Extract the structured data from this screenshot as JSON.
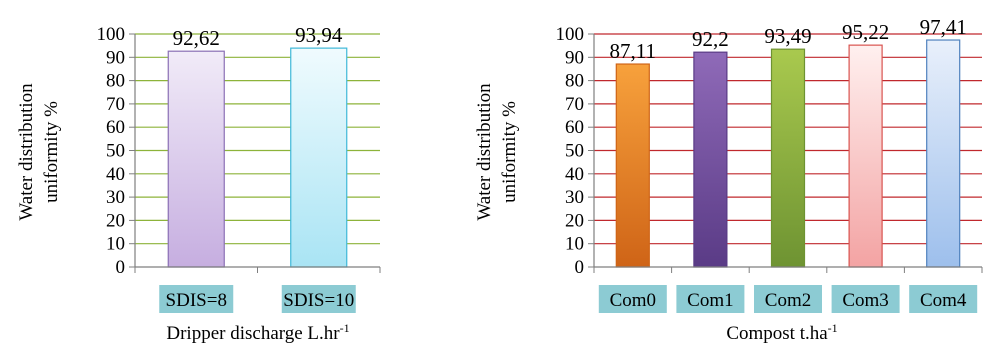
{
  "chart_data": [
    {
      "type": "bar",
      "categories": [
        "SDIS=8",
        "SDIS=10"
      ],
      "values": [
        92.62,
        93.94
      ],
      "value_labels": [
        "92,62",
        "93,94"
      ],
      "xlabel": "Dripper discharge L.hr",
      "xlabel_sup": "-1",
      "ylabel_line1": "Water distribution",
      "ylabel_line2": "uniformity %",
      "ylim": [
        0,
        100
      ],
      "yticks": [
        "0",
        "10",
        "20",
        "30",
        "40",
        "50",
        "60",
        "70",
        "80",
        "90",
        "100"
      ],
      "grid": true,
      "grid_color": "#8db33a",
      "category_label_bg": "#8ccbd3",
      "bar_fills": [
        [
          "#f1ebf8",
          "#c6aee0"
        ],
        [
          "#f0fbfe",
          "#a9e4f4"
        ]
      ],
      "bar_strokes": [
        "#8a6fb5",
        "#3fb8d8"
      ]
    },
    {
      "type": "bar",
      "categories": [
        "Com0",
        "Com1",
        "Com2",
        "Com3",
        "Com4"
      ],
      "values": [
        87.11,
        92.2,
        93.49,
        95.22,
        97.41
      ],
      "value_labels": [
        "87,11",
        "92,2",
        "93,49",
        "95,22",
        "97,41"
      ],
      "xlabel": "Compost t.ha",
      "xlabel_sup": "-1",
      "ylabel_line1": "Water distribution",
      "ylabel_line2": "uniformity %",
      "ylim": [
        0,
        100
      ],
      "yticks": [
        "0",
        "10",
        "20",
        "30",
        "40",
        "50",
        "60",
        "70",
        "80",
        "90",
        "100"
      ],
      "grid": true,
      "grid_color": "#c0282d",
      "category_label_bg": "#8ccbd3",
      "bar_fills": [
        [
          "#f7a13c",
          "#cf6417"
        ],
        [
          "#8f6ab8",
          "#5a3b86"
        ],
        [
          "#a9c94e",
          "#6e9332"
        ],
        [
          "#fff0ef",
          "#f3a3a3"
        ],
        [
          "#e9f0fb",
          "#9dbfec"
        ]
      ],
      "bar_strokes": [
        "#cf6417",
        "#5a3b86",
        "#6e9332",
        "#d9534f",
        "#4f81bd"
      ]
    }
  ]
}
